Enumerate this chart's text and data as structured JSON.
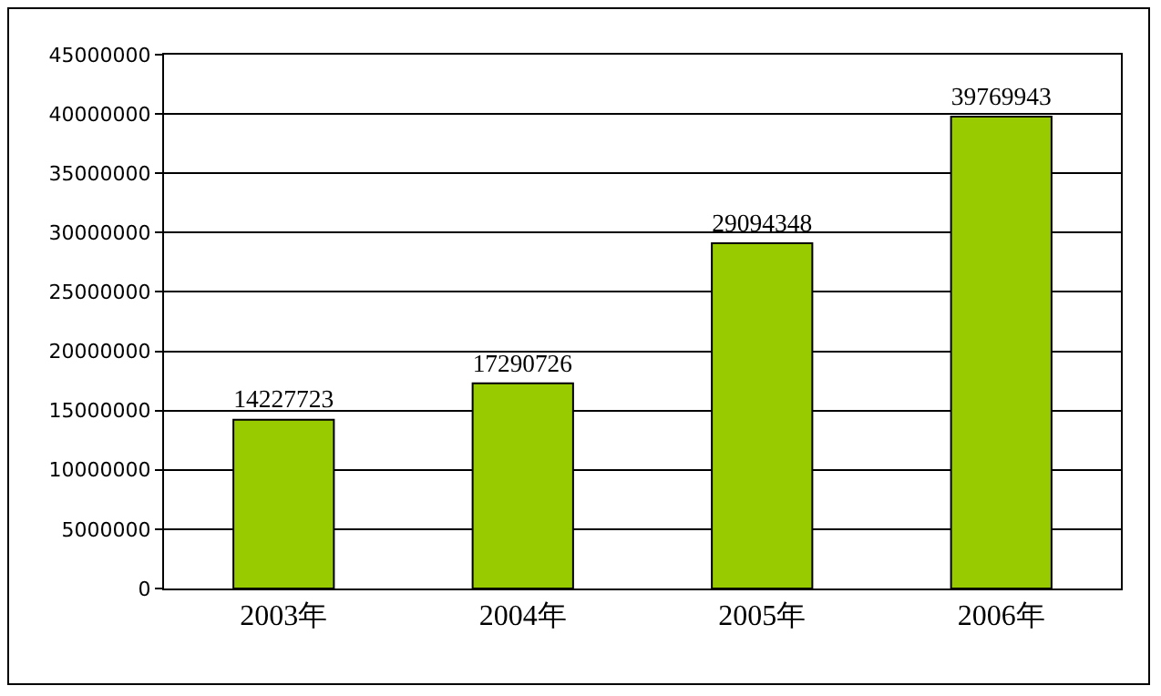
{
  "chart_data": {
    "type": "bar",
    "categories": [
      "2003年",
      "2004年",
      "2005年",
      "2006年"
    ],
    "values": [
      14227723,
      17290726,
      29094348,
      39769943
    ],
    "color": "#99cc00",
    "ylim": [
      0,
      45000000
    ],
    "yticks": [
      0,
      5000000,
      10000000,
      15000000,
      20000000,
      25000000,
      30000000,
      35000000,
      40000000,
      45000000
    ],
    "grid": "y",
    "data_labels": true
  }
}
